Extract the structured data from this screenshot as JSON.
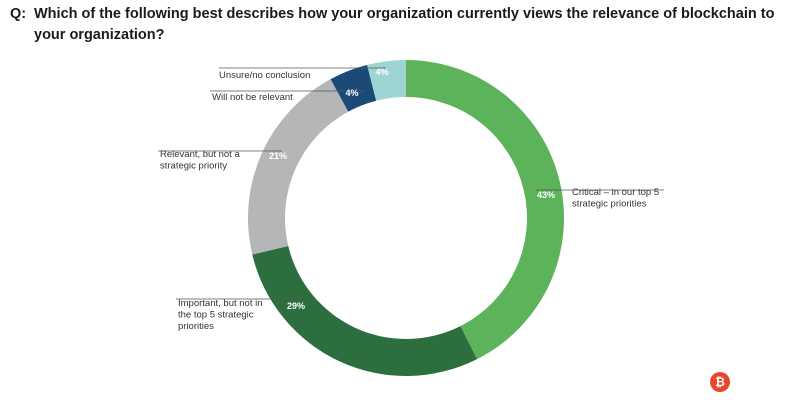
{
  "question": {
    "prefix": "Q:",
    "text": "Which of the following best describes how your organization currently views the relevance of blockchain to your organization?"
  },
  "chart_data": {
    "type": "pie",
    "style": "donut",
    "title": "Which of the following best describes how your organization currently views the relevance of blockchain to your organization?",
    "unit": "%",
    "slices": [
      {
        "key": "critical",
        "label": [
          "Critical  – in  our top 5",
          "strategic priorities"
        ],
        "value": 43,
        "value_label": "43%",
        "color": "#5db35a"
      },
      {
        "key": "important",
        "label": [
          "Important, but not in",
          "the top 5 strategic",
          "priorities"
        ],
        "value": 29,
        "value_label": "29%",
        "color": "#2d6e3e"
      },
      {
        "key": "relevant",
        "label": [
          "Relevant, but not a",
          "strategic priority"
        ],
        "value": 21,
        "value_label": "21%",
        "color": "#b5b6b8"
      },
      {
        "key": "not-relevant",
        "label": [
          "Will not be relevant"
        ],
        "value": 4,
        "value_label": "4%",
        "color": "#1c4a78"
      },
      {
        "key": "unsure",
        "label": [
          "Unsure/no conclusion"
        ],
        "value": 4,
        "value_label": "4%",
        "color": "#9fd4d4"
      }
    ]
  },
  "logo": {
    "glyph": "₿",
    "name": "bitcoin-logo"
  }
}
